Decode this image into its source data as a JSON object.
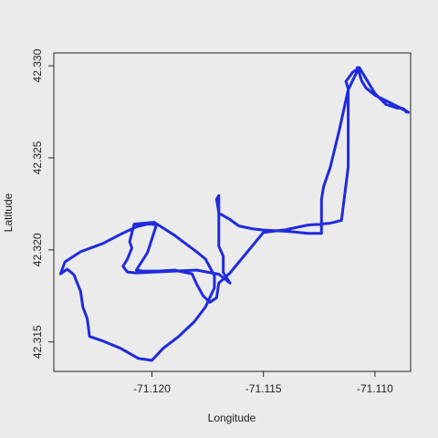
{
  "chart_data": {
    "type": "line",
    "title": "",
    "xlabel": "Longitude",
    "ylabel": "Latitude",
    "xlim": [
      -71.1244,
      -71.1084
    ],
    "ylim": [
      42.3134,
      42.3307
    ],
    "x_ticks": [
      -71.12,
      -71.115,
      -71.11
    ],
    "x_tick_labels": [
      "-71.120",
      "-71.115",
      "-71.110"
    ],
    "y_ticks": [
      42.315,
      42.32,
      42.325,
      42.33
    ],
    "y_tick_labels": [
      "42.315",
      "42.320",
      "42.325",
      "42.330"
    ],
    "grid": false,
    "series": [
      {
        "color": "#1f2bdc",
        "x": [
          -71.1085,
          -71.109,
          -71.11,
          -71.1104,
          -71.1106,
          -71.1107,
          -71.1108,
          -71.1107,
          -71.1108,
          -71.1112,
          -71.1116,
          -71.112,
          -71.1123,
          -71.1124,
          -71.1124,
          -71.1124,
          -71.113,
          -71.1138,
          -71.1145,
          -71.115,
          -71.1155,
          -71.1161,
          -71.1165,
          -71.117,
          -71.1171,
          -71.117,
          -71.117,
          -71.1168,
          -71.1168,
          -71.1165,
          -71.117,
          -71.118,
          -71.119,
          -71.1199,
          -71.1207,
          -71.1211,
          -71.1213,
          -71.1211,
          -71.1209,
          -71.121,
          -71.1208,
          -71.1199,
          -71.119,
          -71.118,
          -71.1176,
          -71.1172,
          -71.1172,
          -71.1176,
          -71.1181,
          -71.1188,
          -71.1195,
          -71.12,
          -71.1206,
          -71.1214,
          -71.1222,
          -71.1228,
          -71.1229,
          -71.1231,
          -71.1232,
          -71.1235,
          -71.1238,
          -71.1241,
          -71.1239,
          -71.1232,
          -71.1222,
          -71.1214,
          -71.1207,
          -71.1202,
          -71.12,
          -71.1198,
          -71.1202,
          -71.1207,
          -71.1204,
          -71.1197,
          -71.119,
          -71.1182,
          -71.118,
          -71.1177,
          -71.1174,
          -71.1171,
          -71.117,
          -71.1165,
          -71.115,
          -71.114,
          -71.113,
          -71.112,
          -71.1115,
          -71.1112,
          -71.1112,
          -71.1112,
          -71.1112,
          -71.1113,
          -71.111,
          -71.1107,
          -71.1104,
          -71.11,
          -71.1095,
          -71.109,
          -71.1088,
          -71.1087,
          -71.1086,
          -71.1085
        ],
        "y": [
          42.32748,
          42.3278,
          42.3284,
          42.3288,
          42.3292,
          42.3296,
          42.3299,
          42.3299,
          42.3297,
          42.3287,
          42.3265,
          42.3245,
          42.32345,
          42.32275,
          42.3218,
          42.3209,
          42.3209,
          42.321,
          42.32105,
          42.32108,
          42.32115,
          42.3213,
          42.32165,
          42.322,
          42.32275,
          42.32295,
          42.3202,
          42.31965,
          42.31877,
          42.3182,
          42.31868,
          42.3189,
          42.31885,
          42.3188,
          42.31875,
          42.3188,
          42.3191,
          42.3195,
          42.3201,
          42.32045,
          42.3214,
          42.3215,
          42.3208,
          42.3199,
          42.3195,
          42.3186,
          42.31795,
          42.3169,
          42.3161,
          42.3153,
          42.31465,
          42.314,
          42.3141,
          42.31465,
          42.31505,
          42.3153,
          42.31625,
          42.3169,
          42.31775,
          42.31865,
          42.31895,
          42.3187,
          42.31935,
          42.3199,
          42.32035,
          42.32085,
          42.32125,
          42.3214,
          42.3214,
          42.32135,
          42.31985,
          42.3189,
          42.31885,
          42.31885,
          42.3189,
          42.3187,
          42.31815,
          42.3175,
          42.31715,
          42.3174,
          42.3182,
          42.31875,
          42.32095,
          42.3211,
          42.32135,
          42.32145,
          42.3216,
          42.3245,
          42.3264,
          42.3282,
          42.32875,
          42.32915,
          42.32965,
          42.3299,
          42.3293,
          42.3285,
          42.3279,
          42.3277,
          42.3277,
          42.32765,
          42.3275,
          42.32748
        ]
      }
    ]
  }
}
